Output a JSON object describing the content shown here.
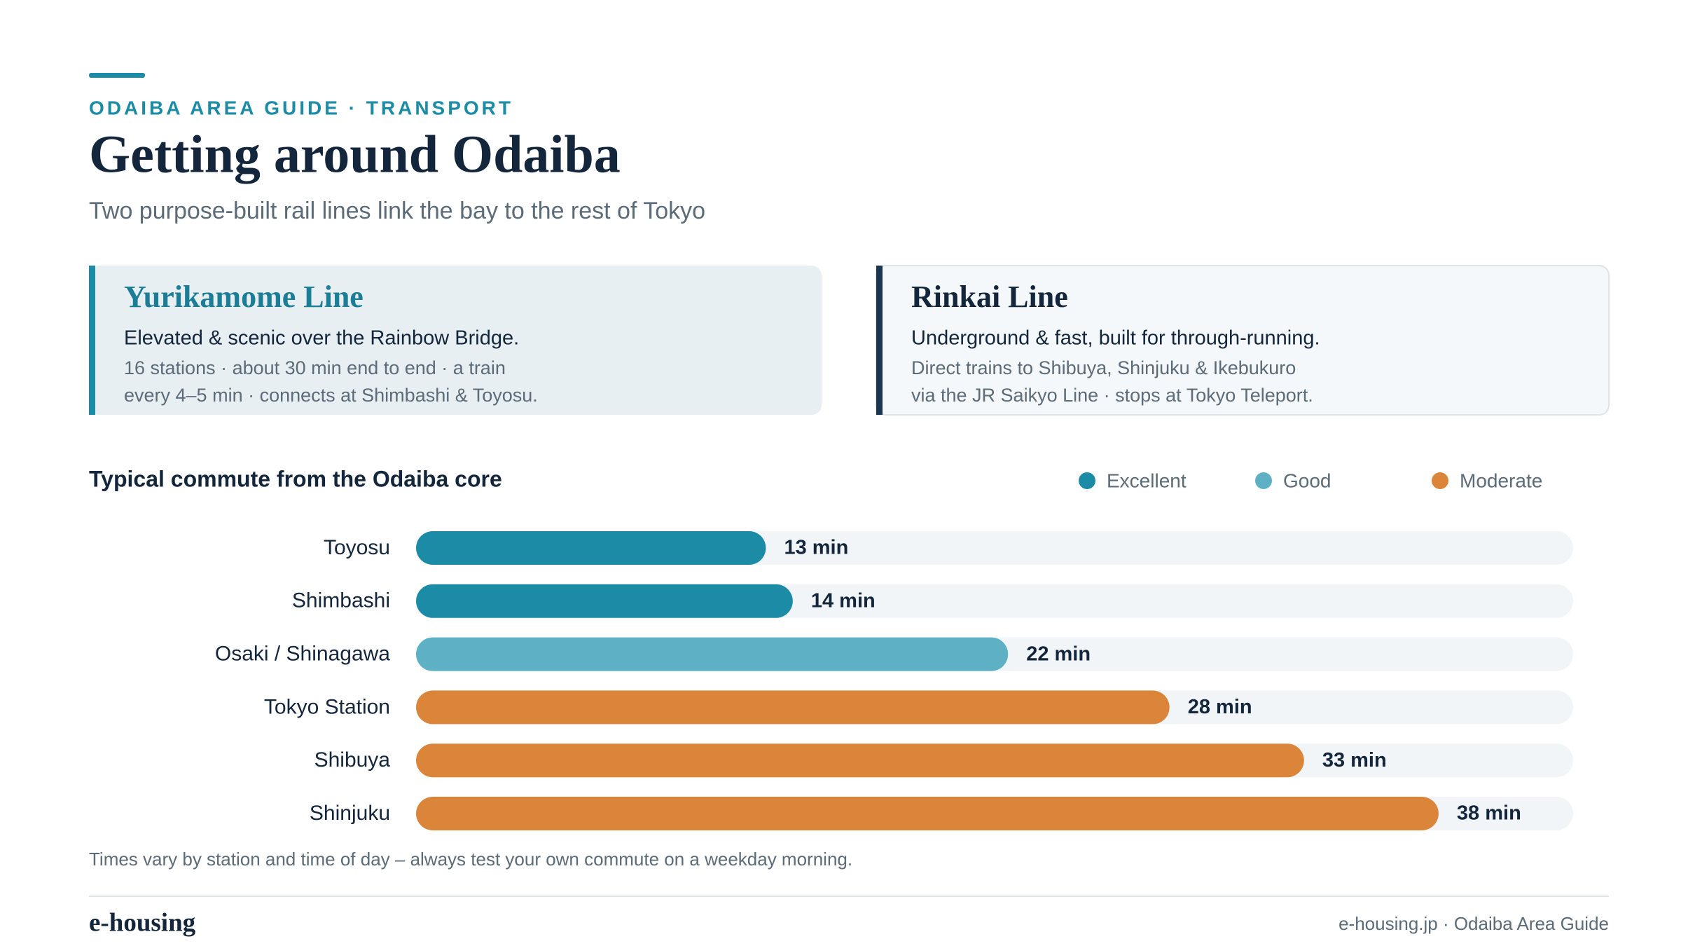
{
  "header": {
    "kicker": "ODAIBA AREA GUIDE · TRANSPORT",
    "title": "Getting around Odaiba",
    "subtitle": "Two purpose-built rail lines link the bay to the rest of Tokyo"
  },
  "cards": [
    {
      "title": "Yurikamome Line",
      "lead": "Elevated & scenic over the Rainbow Bridge.",
      "lines": [
        "16 stations · about 30 min end to end · a train",
        "every 4–5 min · connects at Shimbashi & Toyosu."
      ]
    },
    {
      "title": "Rinkai Line",
      "lead": "Underground & fast, built for through-running.",
      "lines": [
        "Direct trains to Shibuya, Shinjuku & Ikebukuro",
        "via the JR Saikyo Line · stops at Tokyo Teleport."
      ]
    }
  ],
  "chart_data": {
    "type": "bar",
    "orientation": "horizontal",
    "title": "Typical commute from the Odaiba core",
    "categories": [
      "Toyosu",
      "Shimbashi",
      "Osaki / Shinagawa",
      "Tokyo Station",
      "Shibuya",
      "Shinjuku"
    ],
    "values": [
      13,
      14,
      22,
      28,
      33,
      38
    ],
    "value_labels": [
      "13 min",
      "14 min",
      "22 min",
      "28 min",
      "33 min",
      "38 min"
    ],
    "colors": [
      "#1b8ba6",
      "#1b8ba6",
      "#5eb0c4",
      "#db853a",
      "#db853a",
      "#db853a"
    ],
    "xlim": [
      0,
      43
    ],
    "legend": [
      {
        "name": "Excellent",
        "color": "#1b8ba6"
      },
      {
        "name": "Good",
        "color": "#5eb0c4"
      },
      {
        "name": "Moderate",
        "color": "#db853a"
      }
    ],
    "note": "Times vary by station and time of day – always test your own commute on a weekday morning."
  },
  "footer": {
    "brand": "e-housing",
    "credit": "e-housing.jp · Odaiba Area Guide"
  }
}
